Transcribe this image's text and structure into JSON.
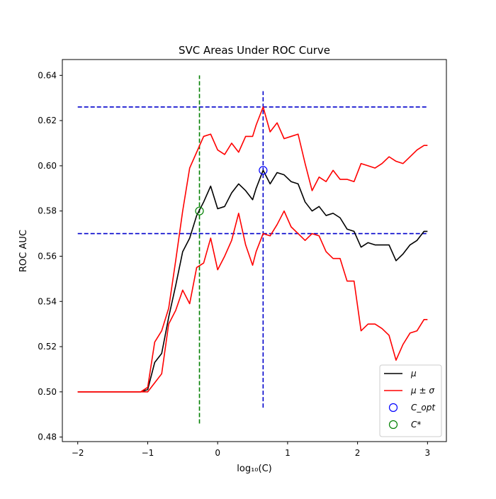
{
  "chart_data": {
    "type": "line",
    "title": "SVC Areas Under ROC Curve",
    "xlabel": "log₁₀(C)",
    "ylabel": "ROC AUC",
    "xlim": [
      -2.22,
      3.27
    ],
    "ylim": [
      0.478,
      0.647
    ],
    "xticks": [
      -2,
      -1,
      0,
      1,
      2,
      3
    ],
    "xtick_labels": [
      "−2",
      "−1",
      "0",
      "1",
      "2",
      "3"
    ],
    "yticks": [
      0.48,
      0.5,
      0.52,
      0.54,
      0.56,
      0.58,
      0.6,
      0.62,
      0.64
    ],
    "ytick_labels": [
      "0.48",
      "0.50",
      "0.52",
      "0.54",
      "0.56",
      "0.58",
      "0.60",
      "0.62",
      "0.64"
    ],
    "grid": false,
    "legend_position": "bottom-right",
    "legend": [
      {
        "label": "μ",
        "kind": "line",
        "color": "#000000"
      },
      {
        "label": "μ ± σ",
        "kind": "line",
        "color": "#ff0000"
      },
      {
        "label": "C_opt",
        "kind": "circle",
        "color": "#0000ff"
      },
      {
        "label": "C*",
        "kind": "circle",
        "color": "#008000"
      }
    ],
    "series": [
      {
        "name": "μ",
        "color": "#000000",
        "x": [
          -2.0,
          -1.9,
          -1.8,
          -1.7,
          -1.6,
          -1.5,
          -1.4,
          -1.3,
          -1.2,
          -1.1,
          -1.0,
          -0.9,
          -0.8,
          -0.7,
          -0.6,
          -0.5,
          -0.4,
          -0.3,
          -0.2,
          -0.1,
          0.0,
          0.1,
          0.2,
          0.3,
          0.4,
          0.5,
          0.55,
          0.65,
          0.75,
          0.85,
          0.95,
          1.05,
          1.15,
          1.25,
          1.35,
          1.45,
          1.55,
          1.65,
          1.75,
          1.85,
          1.95,
          2.05,
          2.15,
          2.25,
          2.35,
          2.45,
          2.55,
          2.65,
          2.75,
          2.85,
          2.95,
          3.0
        ],
        "y": [
          0.5,
          0.5,
          0.5,
          0.5,
          0.5,
          0.5,
          0.5,
          0.5,
          0.5,
          0.5,
          0.501,
          0.513,
          0.517,
          0.533,
          0.547,
          0.562,
          0.568,
          0.578,
          0.584,
          0.591,
          0.581,
          0.582,
          0.588,
          0.592,
          0.589,
          0.585,
          0.59,
          0.598,
          0.592,
          0.597,
          0.596,
          0.593,
          0.592,
          0.584,
          0.58,
          0.582,
          0.578,
          0.579,
          0.577,
          0.572,
          0.571,
          0.564,
          0.566,
          0.565,
          0.565,
          0.565,
          0.558,
          0.561,
          0.565,
          0.567,
          0.571,
          0.571
        ]
      },
      {
        "name": "μ + σ",
        "color": "#ff0000",
        "x": [
          -2.0,
          -1.9,
          -1.8,
          -1.7,
          -1.6,
          -1.5,
          -1.4,
          -1.3,
          -1.2,
          -1.1,
          -1.0,
          -0.9,
          -0.8,
          -0.7,
          -0.6,
          -0.5,
          -0.4,
          -0.3,
          -0.2,
          -0.1,
          0.0,
          0.1,
          0.2,
          0.3,
          0.4,
          0.5,
          0.55,
          0.65,
          0.75,
          0.85,
          0.95,
          1.05,
          1.15,
          1.25,
          1.35,
          1.45,
          1.55,
          1.65,
          1.75,
          1.85,
          1.95,
          2.05,
          2.15,
          2.25,
          2.35,
          2.45,
          2.55,
          2.65,
          2.75,
          2.85,
          2.95,
          3.0
        ],
        "y": [
          0.5,
          0.5,
          0.5,
          0.5,
          0.5,
          0.5,
          0.5,
          0.5,
          0.5,
          0.5,
          0.502,
          0.522,
          0.527,
          0.537,
          0.558,
          0.58,
          0.599,
          0.606,
          0.613,
          0.614,
          0.607,
          0.605,
          0.61,
          0.606,
          0.613,
          0.613,
          0.618,
          0.626,
          0.615,
          0.619,
          0.612,
          0.613,
          0.614,
          0.601,
          0.589,
          0.595,
          0.593,
          0.598,
          0.594,
          0.594,
          0.593,
          0.601,
          0.6,
          0.599,
          0.601,
          0.604,
          0.602,
          0.601,
          0.604,
          0.607,
          0.609,
          0.609
        ]
      },
      {
        "name": "μ − σ",
        "color": "#ff0000",
        "x": [
          -2.0,
          -1.9,
          -1.8,
          -1.7,
          -1.6,
          -1.5,
          -1.4,
          -1.3,
          -1.2,
          -1.1,
          -1.0,
          -0.9,
          -0.8,
          -0.7,
          -0.6,
          -0.5,
          -0.4,
          -0.3,
          -0.2,
          -0.1,
          0.0,
          0.1,
          0.2,
          0.3,
          0.4,
          0.5,
          0.55,
          0.65,
          0.75,
          0.85,
          0.95,
          1.05,
          1.15,
          1.25,
          1.35,
          1.45,
          1.55,
          1.65,
          1.75,
          1.85,
          1.95,
          2.05,
          2.15,
          2.25,
          2.35,
          2.45,
          2.55,
          2.65,
          2.75,
          2.85,
          2.95,
          3.0
        ],
        "y": [
          0.5,
          0.5,
          0.5,
          0.5,
          0.5,
          0.5,
          0.5,
          0.5,
          0.5,
          0.5,
          0.5,
          0.504,
          0.508,
          0.53,
          0.536,
          0.545,
          0.539,
          0.555,
          0.557,
          0.568,
          0.554,
          0.56,
          0.567,
          0.579,
          0.565,
          0.556,
          0.562,
          0.57,
          0.569,
          0.574,
          0.58,
          0.573,
          0.57,
          0.567,
          0.57,
          0.569,
          0.562,
          0.559,
          0.559,
          0.549,
          0.549,
          0.527,
          0.53,
          0.53,
          0.528,
          0.525,
          0.514,
          0.521,
          0.526,
          0.527,
          0.532,
          0.532
        ]
      }
    ],
    "reference_lines": [
      {
        "orientation": "horizontal",
        "y": 0.626,
        "x_range": [
          -2.0,
          3.0
        ],
        "color": "#0000cc",
        "dash": true
      },
      {
        "orientation": "horizontal",
        "y": 0.57,
        "x_range": [
          -2.0,
          3.0
        ],
        "color": "#0000cc",
        "dash": true
      },
      {
        "orientation": "vertical",
        "x": 0.65,
        "y_range": [
          0.493,
          0.633
        ],
        "color": "#0000cc",
        "dash": true
      },
      {
        "orientation": "vertical",
        "x": -0.26,
        "y_range": [
          0.486,
          0.64
        ],
        "color": "#008000",
        "dash": true
      }
    ],
    "markers": [
      {
        "name": "C_opt",
        "x": 0.65,
        "y": 0.598,
        "color": "#0000ff"
      },
      {
        "name": "C*",
        "x": -0.26,
        "y": 0.58,
        "color": "#008000"
      }
    ]
  }
}
